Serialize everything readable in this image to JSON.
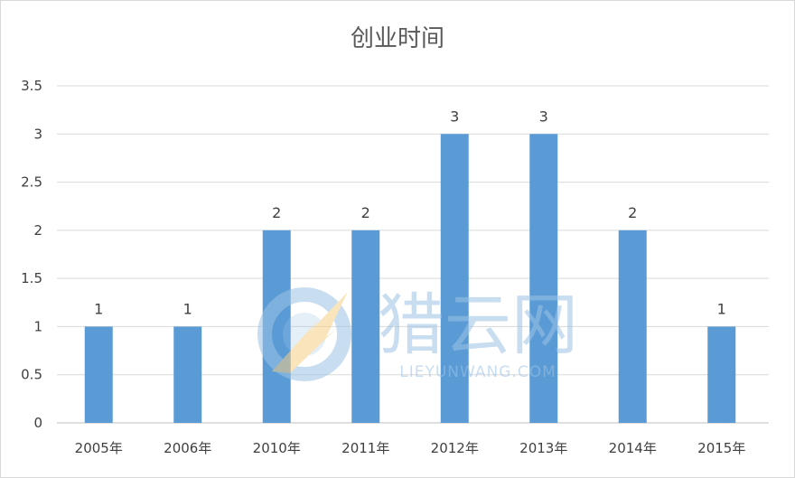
{
  "chart_data": {
    "type": "bar",
    "title": "创业时间",
    "categories": [
      "2005年",
      "2006年",
      "2010年",
      "2011年",
      "2012年",
      "2013年",
      "2014年",
      "2015年"
    ],
    "values": [
      1,
      1,
      2,
      2,
      3,
      3,
      2,
      1
    ],
    "data_labels": [
      "1",
      "1",
      "2",
      "2",
      "3",
      "3",
      "2",
      "1"
    ],
    "ylim": [
      0,
      3.5
    ],
    "yticks": [
      "0",
      "0.5",
      "1",
      "1.5",
      "2",
      "2.5",
      "3",
      "3.5"
    ],
    "grid": true,
    "legend": "none",
    "bar_color": "#5b9bd5"
  },
  "watermark": {
    "brand": "猎云网",
    "url": "LIEYUNWANG.COM",
    "icon": "lieyun-logo-icon"
  }
}
